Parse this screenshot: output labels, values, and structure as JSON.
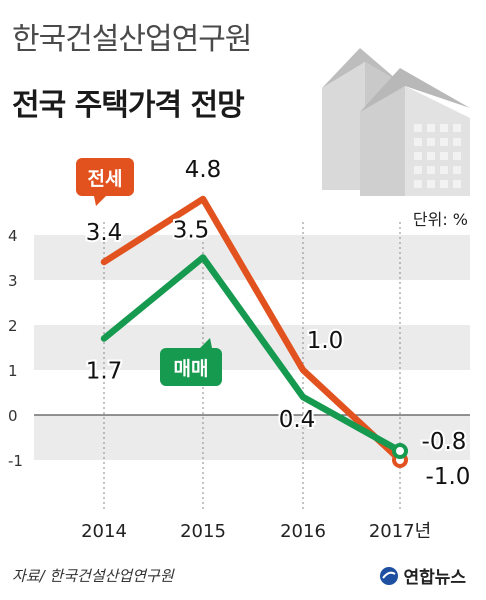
{
  "header": {
    "subtitle": "한국건설산업연구원",
    "title": "전국 주택가격 전망"
  },
  "unit_label": "단위: %",
  "source": "자료/ 한국건설산업연구원",
  "brand": "연합뉴스",
  "colors": {
    "jeonse": "#e2521f",
    "maemae": "#159a4f",
    "band": "#ebebeb",
    "axis": "#555555",
    "building": "#d9d9d9"
  },
  "chart_data": {
    "type": "line",
    "categories": [
      "2014",
      "2015",
      "2016",
      "2017년"
    ],
    "series": [
      {
        "name": "전세",
        "values": [
          3.4,
          4.8,
          1.0,
          -1.0
        ],
        "labels": [
          "3.4",
          "4.8",
          "1.0",
          "-1.0"
        ]
      },
      {
        "name": "매매",
        "values": [
          1.7,
          3.5,
          0.4,
          -0.8
        ],
        "labels": [
          "1.7",
          "3.5",
          "0.4",
          "-0.8"
        ]
      }
    ],
    "yticks": [
      "-1",
      "0",
      "1",
      "2",
      "3",
      "4"
    ],
    "ylim": [
      -1,
      4
    ],
    "grid": "alternating horizontal bands",
    "legend": "inline labels"
  }
}
